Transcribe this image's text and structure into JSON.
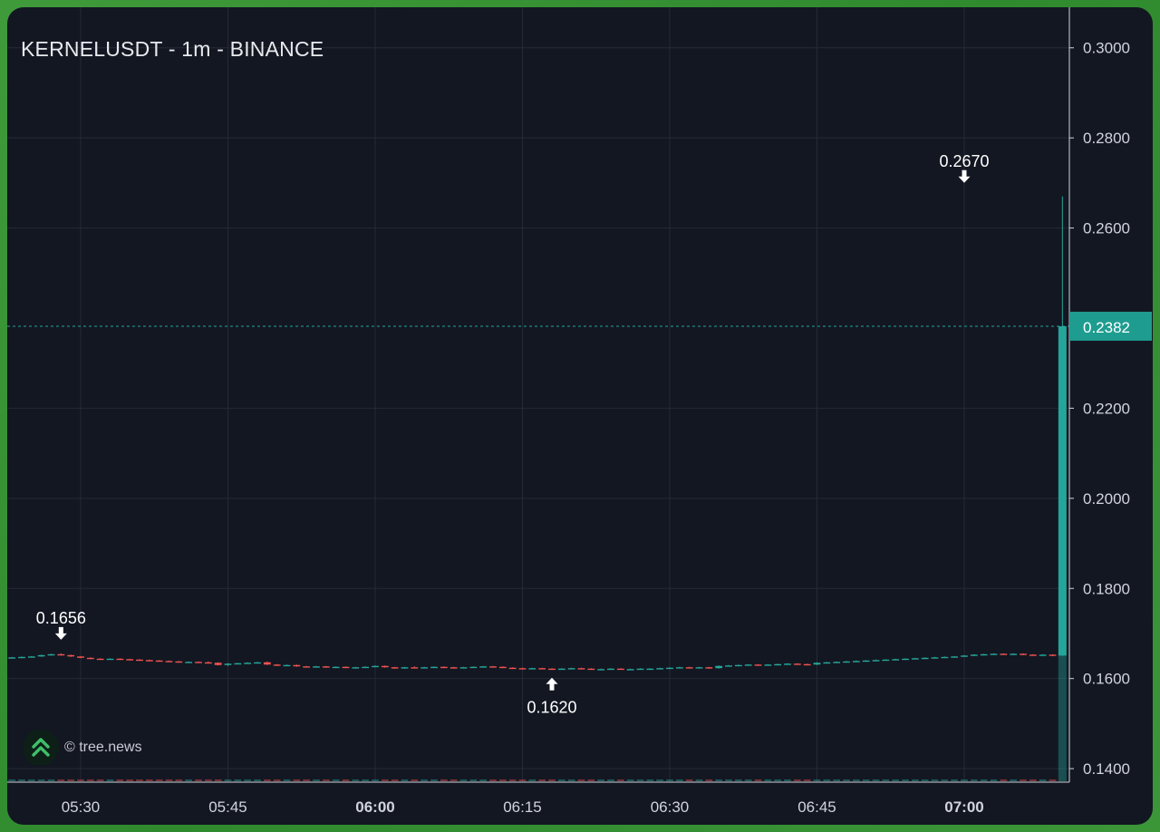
{
  "chart_data": {
    "type": "candlestick",
    "title": "KERNELUSDT - 1m - BINANCE",
    "ylim": [
      0.137,
      0.309
    ],
    "y_ticks": [
      "0.1400",
      "0.1600",
      "0.1800",
      "0.2000",
      "0.2200",
      "0.2600",
      "0.2800",
      "0.3000"
    ],
    "x_ticks": [
      {
        "label": "05:30",
        "bold": false
      },
      {
        "label": "05:45",
        "bold": false
      },
      {
        "label": "06:00",
        "bold": true
      },
      {
        "label": "06:15",
        "bold": false
      },
      {
        "label": "06:30",
        "bold": false
      },
      {
        "label": "06:45",
        "bold": false
      },
      {
        "label": "07:00",
        "bold": true
      }
    ],
    "start_time": "05:22",
    "current_price": "0.2382",
    "annotations": [
      {
        "label": "0.1656",
        "time": "05:28",
        "price": 0.1656,
        "direction": "down"
      },
      {
        "label": "0.1620",
        "time": "06:18",
        "price": 0.162,
        "direction": "up"
      },
      {
        "label": "0.2670",
        "time": "07:00",
        "price": 0.267,
        "direction": "down"
      }
    ],
    "candles": [
      [
        0.1646,
        0.1647,
        0.1645,
        0.1646
      ],
      [
        0.1646,
        0.1648,
        0.1645,
        0.1647
      ],
      [
        0.1647,
        0.1649,
        0.1646,
        0.1648
      ],
      [
        0.1648,
        0.165,
        0.1647,
        0.1649
      ],
      [
        0.1649,
        0.1653,
        0.1648,
        0.1652
      ],
      [
        0.1652,
        0.1655,
        0.1651,
        0.1654
      ],
      [
        0.1654,
        0.1656,
        0.1651,
        0.1652
      ],
      [
        0.1652,
        0.1653,
        0.1648,
        0.1649
      ],
      [
        0.1649,
        0.165,
        0.1645,
        0.1646
      ],
      [
        0.1646,
        0.1647,
        0.1643,
        0.1644
      ],
      [
        0.1644,
        0.1645,
        0.1642,
        0.1643
      ],
      [
        0.1643,
        0.1645,
        0.1642,
        0.1644
      ],
      [
        0.1644,
        0.1645,
        0.1642,
        0.1643
      ],
      [
        0.1643,
        0.1644,
        0.1641,
        0.1642
      ],
      [
        0.1642,
        0.1643,
        0.164,
        0.1641
      ],
      [
        0.1641,
        0.1642,
        0.1639,
        0.164
      ],
      [
        0.164,
        0.1641,
        0.1638,
        0.1639
      ],
      [
        0.1639,
        0.164,
        0.1637,
        0.1638
      ],
      [
        0.1638,
        0.1639,
        0.1636,
        0.1637
      ],
      [
        0.1637,
        0.1638,
        0.1636,
        0.1637
      ],
      [
        0.1637,
        0.1638,
        0.1635,
        0.1636
      ],
      [
        0.1636,
        0.1638,
        0.1634,
        0.1635
      ],
      [
        0.1635,
        0.1636,
        0.1629,
        0.163
      ],
      [
        0.163,
        0.1634,
        0.1628,
        0.1633
      ],
      [
        0.1633,
        0.1635,
        0.1632,
        0.1634
      ],
      [
        0.1634,
        0.1636,
        0.1633,
        0.1635
      ],
      [
        0.1635,
        0.1637,
        0.1634,
        0.1636
      ],
      [
        0.1636,
        0.1638,
        0.163,
        0.1631
      ],
      [
        0.1631,
        0.1632,
        0.1628,
        0.1629
      ],
      [
        0.1629,
        0.1631,
        0.1628,
        0.163
      ],
      [
        0.163,
        0.1631,
        0.1626,
        0.1627
      ],
      [
        0.1627,
        0.1628,
        0.1625,
        0.1626
      ],
      [
        0.1626,
        0.1628,
        0.1625,
        0.1627
      ],
      [
        0.1627,
        0.1628,
        0.1624,
        0.1625
      ],
      [
        0.1625,
        0.1627,
        0.1624,
        0.1626
      ],
      [
        0.1626,
        0.1627,
        0.1623,
        0.1624
      ],
      [
        0.1624,
        0.1626,
        0.1623,
        0.1625
      ],
      [
        0.1625,
        0.1627,
        0.1624,
        0.1626
      ],
      [
        0.1626,
        0.1629,
        0.1625,
        0.1628
      ],
      [
        0.1628,
        0.1629,
        0.1624,
        0.1625
      ],
      [
        0.1625,
        0.1626,
        0.1622,
        0.1623
      ],
      [
        0.1623,
        0.1626,
        0.1622,
        0.1625
      ],
      [
        0.1625,
        0.1627,
        0.1623,
        0.1624
      ],
      [
        0.1624,
        0.1626,
        0.1623,
        0.1625
      ],
      [
        0.1625,
        0.1627,
        0.1624,
        0.1626
      ],
      [
        0.1626,
        0.1627,
        0.1624,
        0.1625
      ],
      [
        0.1625,
        0.1626,
        0.1623,
        0.1624
      ],
      [
        0.1624,
        0.1626,
        0.1623,
        0.1625
      ],
      [
        0.1625,
        0.1627,
        0.1624,
        0.1626
      ],
      [
        0.1626,
        0.1628,
        0.1625,
        0.1627
      ],
      [
        0.1627,
        0.1628,
        0.1625,
        0.1626
      ],
      [
        0.1626,
        0.1627,
        0.1623,
        0.1624
      ],
      [
        0.1624,
        0.1625,
        0.1622,
        0.1623
      ],
      [
        0.1623,
        0.1624,
        0.1621,
        0.1622
      ],
      [
        0.1622,
        0.1624,
        0.1621,
        0.1623
      ],
      [
        0.1623,
        0.1624,
        0.1621,
        0.1622
      ],
      [
        0.1622,
        0.1623,
        0.162,
        0.1621
      ],
      [
        0.1621,
        0.1623,
        0.162,
        0.1622
      ],
      [
        0.1622,
        0.1624,
        0.1621,
        0.1623
      ],
      [
        0.1623,
        0.1624,
        0.1621,
        0.1622
      ],
      [
        0.1622,
        0.1623,
        0.162,
        0.1621
      ],
      [
        0.1621,
        0.1622,
        0.162,
        0.1621
      ],
      [
        0.1621,
        0.1623,
        0.162,
        0.1622
      ],
      [
        0.1622,
        0.1623,
        0.162,
        0.1621
      ],
      [
        0.1621,
        0.1622,
        0.162,
        0.1621
      ],
      [
        0.1621,
        0.1623,
        0.162,
        0.1622
      ],
      [
        0.1622,
        0.1623,
        0.1621,
        0.1622
      ],
      [
        0.1622,
        0.1624,
        0.1621,
        0.1623
      ],
      [
        0.1623,
        0.1625,
        0.1622,
        0.1624
      ],
      [
        0.1624,
        0.1626,
        0.1623,
        0.1625
      ],
      [
        0.1625,
        0.1626,
        0.1623,
        0.1624
      ],
      [
        0.1624,
        0.1626,
        0.1623,
        0.1625
      ],
      [
        0.1625,
        0.1626,
        0.1622,
        0.1623
      ],
      [
        0.1623,
        0.1629,
        0.1622,
        0.1628
      ],
      [
        0.1628,
        0.163,
        0.1627,
        0.1629
      ],
      [
        0.1629,
        0.1631,
        0.1628,
        0.163
      ],
      [
        0.163,
        0.1632,
        0.1629,
        0.1631
      ],
      [
        0.1631,
        0.1632,
        0.1629,
        0.163
      ],
      [
        0.163,
        0.1632,
        0.1629,
        0.1631
      ],
      [
        0.1631,
        0.1633,
        0.163,
        0.1632
      ],
      [
        0.1632,
        0.1634,
        0.1631,
        0.1633
      ],
      [
        0.1633,
        0.1634,
        0.1631,
        0.1632
      ],
      [
        0.1632,
        0.1633,
        0.163,
        0.1631
      ],
      [
        0.1631,
        0.1636,
        0.163,
        0.1635
      ],
      [
        0.1635,
        0.1637,
        0.1634,
        0.1636
      ],
      [
        0.1636,
        0.1638,
        0.1635,
        0.1637
      ],
      [
        0.1637,
        0.1639,
        0.1636,
        0.1638
      ],
      [
        0.1638,
        0.164,
        0.1637,
        0.1639
      ],
      [
        0.1639,
        0.1641,
        0.1638,
        0.164
      ],
      [
        0.164,
        0.1642,
        0.1639,
        0.1641
      ],
      [
        0.1641,
        0.1643,
        0.164,
        0.1642
      ],
      [
        0.1642,
        0.1644,
        0.1641,
        0.1643
      ],
      [
        0.1643,
        0.1645,
        0.1642,
        0.1644
      ],
      [
        0.1644,
        0.1646,
        0.1643,
        0.1645
      ],
      [
        0.1645,
        0.1647,
        0.1644,
        0.1646
      ],
      [
        0.1646,
        0.1648,
        0.1645,
        0.1647
      ],
      [
        0.1647,
        0.1649,
        0.1646,
        0.1648
      ],
      [
        0.1648,
        0.165,
        0.1647,
        0.1649
      ],
      [
        0.1649,
        0.1652,
        0.1648,
        0.1651
      ],
      [
        0.1651,
        0.1654,
        0.165,
        0.1653
      ],
      [
        0.1653,
        0.1655,
        0.1652,
        0.1654
      ],
      [
        0.1654,
        0.1656,
        0.1653,
        0.1655
      ],
      [
        0.1655,
        0.1656,
        0.1653,
        0.1654
      ],
      [
        0.1654,
        0.1656,
        0.1653,
        0.1655
      ],
      [
        0.1655,
        0.1656,
        0.1652,
        0.1653
      ],
      [
        0.1653,
        0.1654,
        0.1651,
        0.1652
      ],
      [
        0.1652,
        0.1654,
        0.1651,
        0.1653
      ],
      [
        0.1653,
        0.1654,
        0.165,
        0.1651
      ],
      [
        0.1651,
        0.267,
        0.165,
        0.2382
      ]
    ],
    "colors": {
      "up": "#26a69a",
      "down": "#ef5350",
      "background": "#131722",
      "grid": "#252a36",
      "text": "#d1d4dc",
      "price_tag": "#1f9c90"
    }
  },
  "watermark": {
    "text": "© tree.news",
    "icon": "tree-news-double-chevron-icon"
  }
}
